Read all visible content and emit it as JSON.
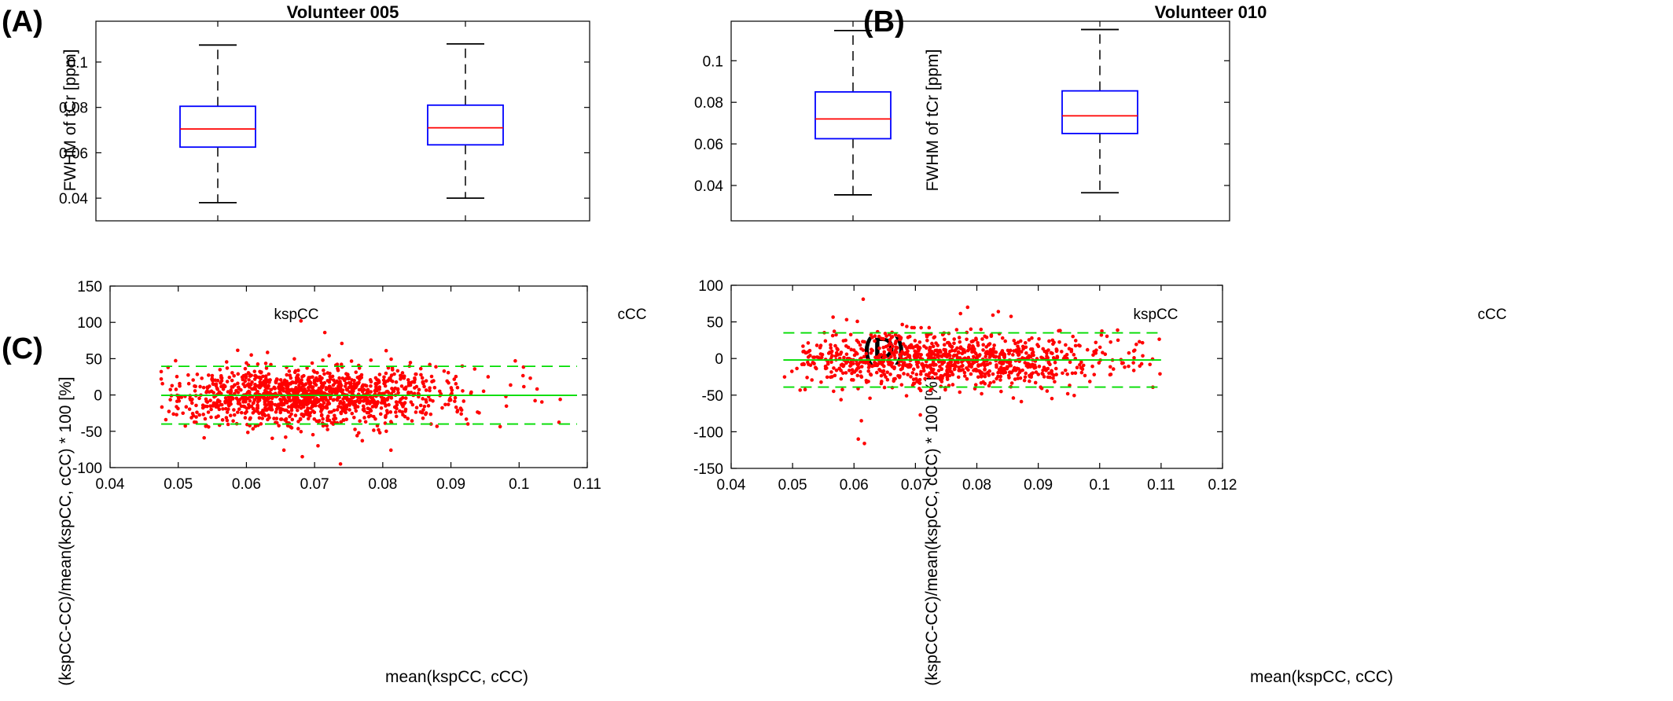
{
  "chart_data": [
    {
      "panel": "(A)",
      "type": "box",
      "title": "Volunteer 005",
      "xlabel": "",
      "ylabel": "FWHM of tCr [ppm]",
      "categories": [
        "kspCC",
        "cCC"
      ],
      "ylim": [
        0.03,
        0.118
      ],
      "yticks": [
        0.04,
        0.06,
        0.08,
        0.1
      ],
      "ytick_labels": [
        "0.04",
        "0.06",
        "0.08",
        "0.1"
      ],
      "boxes": [
        {
          "category": "kspCC",
          "whisker_low": 0.038,
          "q1": 0.0625,
          "median": 0.0705,
          "q3": 0.0805,
          "whisker_high": 0.1075
        },
        {
          "category": "cCC",
          "whisker_low": 0.04,
          "q1": 0.0635,
          "median": 0.071,
          "q3": 0.081,
          "whisker_high": 0.108
        }
      ],
      "colors": {
        "box": "#0000ff",
        "median": "#ff0000",
        "whisker": "#000000"
      }
    },
    {
      "panel": "(B)",
      "type": "box",
      "title": "Volunteer 010",
      "xlabel": "",
      "ylabel": "FWHM of tCr [ppm]",
      "categories": [
        "kspCC",
        "cCC"
      ],
      "ylim": [
        0.023,
        0.119
      ],
      "yticks": [
        0.04,
        0.06,
        0.08,
        0.1
      ],
      "ytick_labels": [
        "0.04",
        "0.06",
        "0.08",
        "0.1"
      ],
      "boxes": [
        {
          "category": "kspCC",
          "whisker_low": 0.0355,
          "q1": 0.0625,
          "median": 0.072,
          "q3": 0.085,
          "whisker_high": 0.1145
        },
        {
          "category": "cCC",
          "whisker_low": 0.0365,
          "q1": 0.065,
          "median": 0.0735,
          "q3": 0.0855,
          "whisker_high": 0.115
        }
      ],
      "colors": {
        "box": "#0000ff",
        "median": "#ff0000",
        "whisker": "#000000"
      }
    },
    {
      "panel": "(C)",
      "type": "scatter",
      "title": "",
      "xlabel": "mean(kspCC, cCC)",
      "ylabel": "(kspCC-CC)/mean(kspCC, cCC) * 100 [%]",
      "xlim": [
        0.04,
        0.11
      ],
      "ylim": [
        -100,
        150
      ],
      "xticks": [
        0.04,
        0.05,
        0.06,
        0.07,
        0.08,
        0.09,
        0.1,
        0.11
      ],
      "xtick_labels": [
        "0.04",
        "0.05",
        "0.06",
        "0.07",
        "0.08",
        "0.09",
        "0.1",
        "0.11"
      ],
      "yticks": [
        -100,
        -50,
        0,
        50,
        100,
        150
      ],
      "ytick_labels": [
        "-100",
        "-50",
        "0",
        "50",
        "100",
        "150"
      ],
      "x_range_points": [
        0.0475,
        0.1085
      ],
      "bias": -0.5,
      "limits_of_agreement": [
        -40,
        39.5
      ],
      "point_count": 1300,
      "outliers": [
        {
          "x": 0.068,
          "y": 102
        },
        {
          "x": 0.0715,
          "y": 86
        },
        {
          "x": 0.074,
          "y": 71
        },
        {
          "x": 0.0805,
          "y": 61
        },
        {
          "x": 0.0738,
          "y": -95
        },
        {
          "x": 0.0682,
          "y": -85
        },
        {
          "x": 0.0655,
          "y": -76
        },
        {
          "x": 0.0812,
          "y": -76
        },
        {
          "x": 0.0538,
          "y": -59
        },
        {
          "x": 0.0705,
          "y": -70
        },
        {
          "x": 0.077,
          "y": -63
        }
      ],
      "colors": {
        "points": "#ff0000",
        "lines": "#00dd00"
      }
    },
    {
      "panel": "(D)",
      "type": "scatter",
      "title": "",
      "xlabel": "mean(kspCC, cCC)",
      "ylabel": "(kspCC-CC)/mean(kspCC, cCC) * 100 [%]",
      "xlim": [
        0.04,
        0.12
      ],
      "ylim": [
        -150,
        100
      ],
      "xticks": [
        0.04,
        0.05,
        0.06,
        0.07,
        0.08,
        0.09,
        0.1,
        0.11,
        0.12
      ],
      "xtick_labels": [
        "0.04",
        "0.05",
        "0.06",
        "0.07",
        "0.08",
        "0.09",
        "0.1",
        "0.11",
        "0.12"
      ],
      "yticks": [
        -150,
        -100,
        -50,
        0,
        50,
        100
      ],
      "ytick_labels": [
        "-150",
        "-100",
        "-50",
        "0",
        "50",
        "100"
      ],
      "x_range_points": [
        0.0485,
        0.11
      ],
      "bias": -2,
      "limits_of_agreement": [
        -39,
        35
      ],
      "point_count": 1000,
      "outliers": [
        {
          "x": 0.0615,
          "y": 81
        },
        {
          "x": 0.0785,
          "y": 70
        },
        {
          "x": 0.0835,
          "y": 64
        },
        {
          "x": 0.0588,
          "y": 53
        },
        {
          "x": 0.0612,
          "y": -85
        },
        {
          "x": 0.0607,
          "y": -110
        },
        {
          "x": 0.0617,
          "y": -116
        },
        {
          "x": 0.0708,
          "y": -77
        }
      ],
      "colors": {
        "points": "#ff0000",
        "lines": "#00dd00"
      }
    }
  ]
}
